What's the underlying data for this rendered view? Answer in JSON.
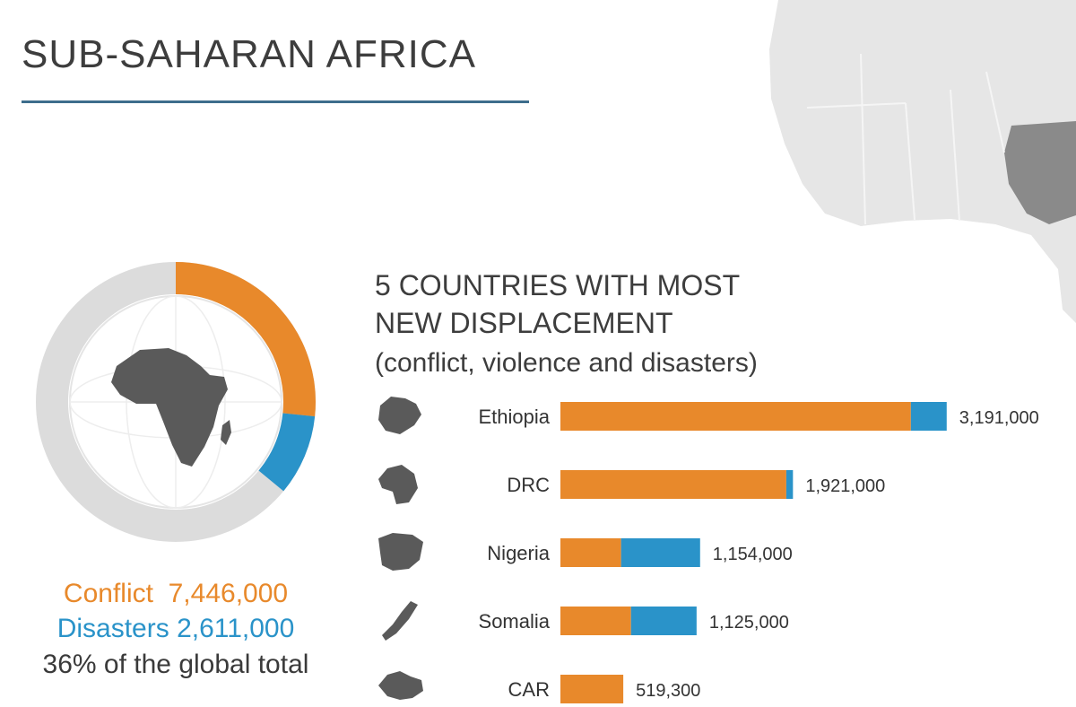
{
  "title": "SUB-SAHARAN AFRICA",
  "summary": {
    "conflict_label": "Conflict",
    "conflict_value": "7,446,000",
    "disasters_label": "Disasters",
    "disasters_value": "2,611,000",
    "share_text": "36% of the global total"
  },
  "donut": {
    "conflict": 7446000,
    "disasters": 2611000,
    "global_share": 0.36
  },
  "colors": {
    "conflict": "#e8892b",
    "disasters": "#2a93c9",
    "remainder": "#dcdcdc",
    "silhouette": "#5a5a5a"
  },
  "chart_heading": {
    "line1": "5 COUNTRIES WITH MOST",
    "line2": "NEW DISPLACEMENT",
    "line3": "(conflict, violence and disasters)"
  },
  "chart_data": {
    "type": "bar",
    "orientation": "horizontal",
    "stacked": true,
    "categories": [
      "Ethiopia",
      "DRC",
      "Nigeria",
      "Somalia",
      "CAR"
    ],
    "value_labels": [
      "3,191,000",
      "1,921,000",
      "1,154,000",
      "1,125,000",
      "519,300"
    ],
    "totals": [
      3191000,
      1921000,
      1154000,
      1125000,
      519300
    ],
    "series": [
      {
        "values": [
          2895000,
          1866000,
          501000,
          583000,
          519300
        ]
      },
      {
        "values": [
          296000,
          55000,
          653000,
          542000,
          0
        ]
      }
    ],
    "xlim": [
      0,
      3200000
    ],
    "grid": false
  }
}
